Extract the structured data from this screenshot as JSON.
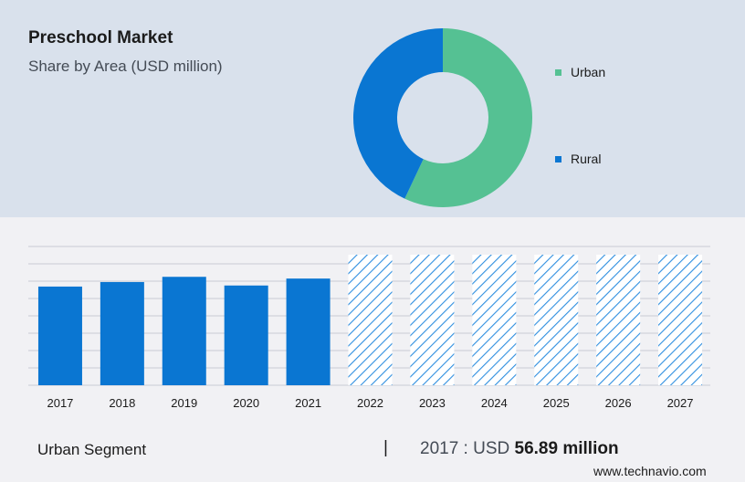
{
  "header": {
    "title": "Preschool Market",
    "subtitle": "Share by Area (USD million)"
  },
  "colors": {
    "urban": "#55c193",
    "rural": "#0a76d2",
    "bar": "#0a76d2",
    "forecast_hatch": "#2f8fe0",
    "grid": "#c9ccd3"
  },
  "chart_data": [
    {
      "type": "pie",
      "variant": "donut",
      "legend_position": "right",
      "slices": [
        {
          "label": "Urban",
          "value": 57
        },
        {
          "label": "Rural",
          "value": 43
        }
      ]
    },
    {
      "type": "bar",
      "categories": [
        "2017",
        "2018",
        "2019",
        "2020",
        "2021",
        "2022",
        "2023",
        "2024",
        "2025",
        "2026",
        "2027"
      ],
      "values": [
        56.89,
        59.5,
        62.5,
        57.5,
        61.5,
        null,
        null,
        null,
        null,
        null,
        null
      ],
      "forecast_categories": [
        "2022",
        "2023",
        "2024",
        "2025",
        "2026",
        "2027"
      ],
      "ylim": [
        0,
        80
      ],
      "grid": true
    }
  ],
  "footer": {
    "segment_label": "Urban Segment",
    "separator": "|",
    "value_prefix": "2017 : USD",
    "value_amount": "56.89 million"
  },
  "watermark": "www.technavio.com"
}
